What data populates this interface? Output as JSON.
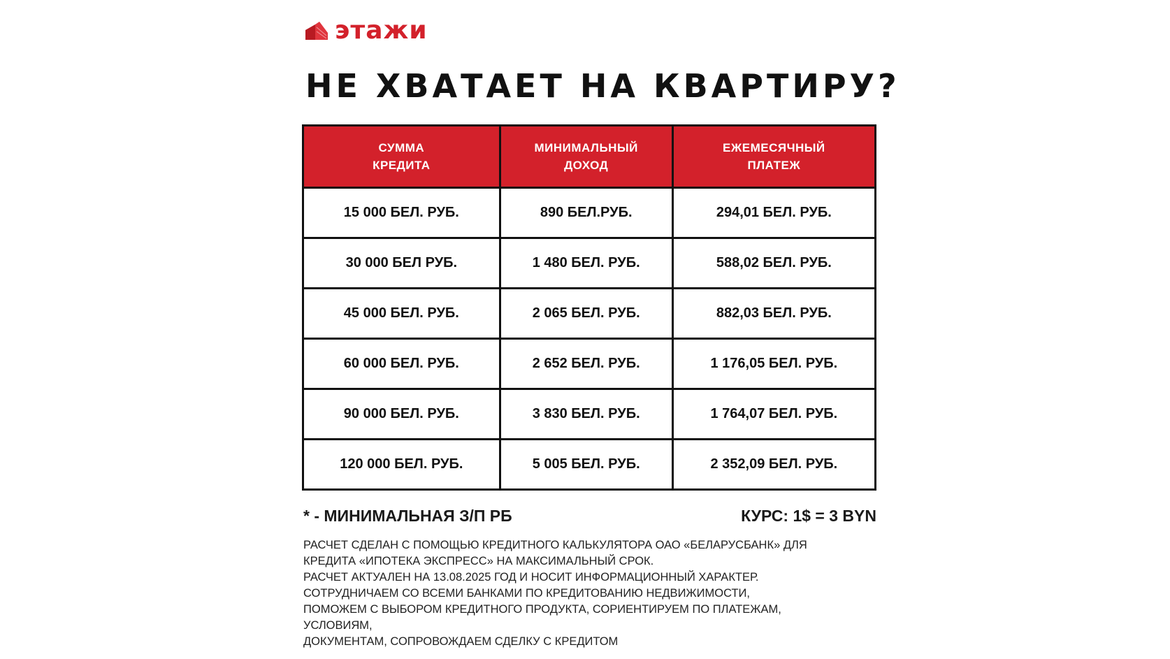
{
  "logo": {
    "text": "этажи",
    "icon": "building-icon",
    "color": "#d3212b"
  },
  "title": "НЕ ХВАТАЕТ НА КВАРТИРУ?",
  "table": {
    "headers": [
      "СУММА\nКРЕДИТА",
      "МИНИМАЛЬНЫЙ\nДОХОД",
      "ЕЖЕМЕСЯЧНЫЙ\nПЛАТЕЖ"
    ],
    "rows": [
      [
        "15 000 БЕЛ. РУБ.",
        "890 БЕЛ.РУБ.",
        "294,01 БЕЛ. РУБ."
      ],
      [
        "30 000 БЕЛ РУБ.",
        "1 480 БЕЛ. РУБ.",
        "588,02 БЕЛ. РУБ."
      ],
      [
        "45 000 БЕЛ. РУБ.",
        "2 065 БЕЛ. РУБ.",
        "882,03 БЕЛ. РУБ."
      ],
      [
        "60 000 БЕЛ. РУБ.",
        "2 652 БЕЛ. РУБ.",
        "1 176,05 БЕЛ. РУБ."
      ],
      [
        "90 000 БЕЛ. РУБ.",
        "3 830 БЕЛ. РУБ.",
        "1 764,07 БЕЛ. РУБ."
      ],
      [
        "120 000 БЕЛ. РУБ.",
        "5 005 БЕЛ. РУБ.",
        "2 352,09 БЕЛ. РУБ."
      ]
    ],
    "header_color": "#d3212b"
  },
  "footnote": "* - МИНИМАЛЬНАЯ З/П РБ",
  "rate": "КУРС: 1$ = 3 BYN",
  "notes": [
    "РАСЧЕТ СДЕЛАН С ПОМОЩЬЮ КРЕДИТНОГО КАЛЬКУЛЯТОРА ОАО «БЕЛАРУСБАНК» ДЛЯ",
    "КРЕДИТА «ИПОТЕКА ЭКСПРЕСС» НА МАКСИМАЛЬНЫЙ СРОК.",
    "РАСЧЕТ АКТУАЛЕН НА 13.08.2025 ГОД И НОСИТ ИНФОРМАЦИОННЫЙ ХАРАКТЕР.",
    "СОТРУДНИЧАЕМ СО ВСЕМИ БАНКАМИ ПО КРЕДИТОВАНИЮ НЕДВИЖИМОСТИ,",
    "ПОМОЖЕМ С ВЫБОРОМ КРЕДИТНОГО ПРОДУКТА, СОРИЕНТИРУЕМ ПО ПЛАТЕЖАМ,",
    "УСЛОВИЯМ,",
    "ДОКУМЕНТАМ, СОПРОВОЖДАЕМ СДЕЛКУ С КРЕДИТОМ"
  ]
}
